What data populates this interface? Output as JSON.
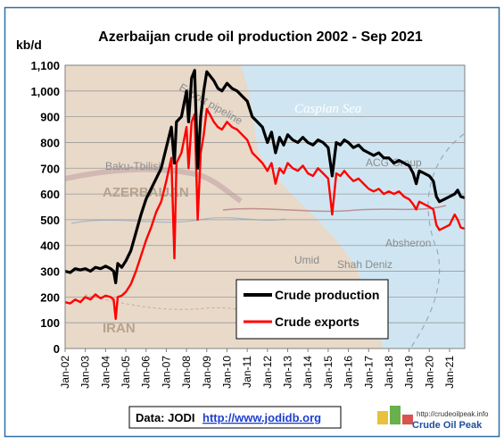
{
  "chart_data": {
    "type": "line",
    "title": "Azerbaijan crude oil production 2002 - Sep 2021",
    "ylabel": "kb/d",
    "ylim": [
      0,
      1100
    ],
    "yticks": [
      "0",
      "100",
      "200",
      "300",
      "400",
      "500",
      "600",
      "700",
      "800",
      "900",
      "1,000",
      "1,100"
    ],
    "xticks": [
      "Jan-02",
      "Jan-03",
      "Jan-04",
      "Jan-05",
      "Jan-06",
      "Jan-07",
      "Jan-08",
      "Jan-09",
      "Jan-10",
      "Jan-11",
      "Jan-12",
      "Jan-13",
      "Jan-14",
      "Jan-15",
      "Jan-16",
      "Jan-17",
      "Jan-18",
      "Jan-19",
      "Jan-20",
      "Jan-21"
    ],
    "xrange": [
      2002.0,
      2021.75
    ],
    "legend_position": "bottom-center",
    "series": [
      {
        "name": "Crude production",
        "color": "#000000",
        "points": [
          [
            2002.0,
            300
          ],
          [
            2002.25,
            295
          ],
          [
            2002.5,
            310
          ],
          [
            2002.75,
            305
          ],
          [
            2003.0,
            310
          ],
          [
            2003.25,
            300
          ],
          [
            2003.5,
            315
          ],
          [
            2003.75,
            310
          ],
          [
            2004.0,
            320
          ],
          [
            2004.25,
            310
          ],
          [
            2004.4,
            300
          ],
          [
            2004.5,
            255
          ],
          [
            2004.6,
            330
          ],
          [
            2004.8,
            315
          ],
          [
            2005.0,
            340
          ],
          [
            2005.25,
            380
          ],
          [
            2005.5,
            450
          ],
          [
            2005.75,
            520
          ],
          [
            2006.0,
            580
          ],
          [
            2006.25,
            620
          ],
          [
            2006.5,
            660
          ],
          [
            2006.75,
            700
          ],
          [
            2007.0,
            780
          ],
          [
            2007.25,
            860
          ],
          [
            2007.4,
            720
          ],
          [
            2007.5,
            880
          ],
          [
            2007.75,
            900
          ],
          [
            2008.0,
            1000
          ],
          [
            2008.1,
            880
          ],
          [
            2008.25,
            1050
          ],
          [
            2008.4,
            1080
          ],
          [
            2008.55,
            700
          ],
          [
            2008.7,
            900
          ],
          [
            2008.85,
            1000
          ],
          [
            2009.0,
            1075
          ],
          [
            2009.15,
            1060
          ],
          [
            2009.35,
            1040
          ],
          [
            2009.55,
            1010
          ],
          [
            2009.75,
            1000
          ],
          [
            2010.0,
            1030
          ],
          [
            2010.25,
            1010
          ],
          [
            2010.5,
            1000
          ],
          [
            2010.75,
            980
          ],
          [
            2011.0,
            960
          ],
          [
            2011.25,
            900
          ],
          [
            2011.5,
            880
          ],
          [
            2011.75,
            860
          ],
          [
            2012.0,
            800
          ],
          [
            2012.2,
            840
          ],
          [
            2012.4,
            760
          ],
          [
            2012.6,
            820
          ],
          [
            2012.8,
            790
          ],
          [
            2013.0,
            830
          ],
          [
            2013.25,
            810
          ],
          [
            2013.5,
            800
          ],
          [
            2013.75,
            820
          ],
          [
            2014.0,
            800
          ],
          [
            2014.25,
            790
          ],
          [
            2014.5,
            810
          ],
          [
            2014.75,
            800
          ],
          [
            2015.0,
            780
          ],
          [
            2015.2,
            670
          ],
          [
            2015.4,
            800
          ],
          [
            2015.6,
            790
          ],
          [
            2015.8,
            810
          ],
          [
            2016.0,
            800
          ],
          [
            2016.25,
            780
          ],
          [
            2016.5,
            790
          ],
          [
            2016.75,
            770
          ],
          [
            2017.0,
            760
          ],
          [
            2017.25,
            750
          ],
          [
            2017.5,
            760
          ],
          [
            2017.75,
            740
          ],
          [
            2018.0,
            740
          ],
          [
            2018.25,
            720
          ],
          [
            2018.5,
            730
          ],
          [
            2018.75,
            720
          ],
          [
            2019.0,
            710
          ],
          [
            2019.2,
            680
          ],
          [
            2019.35,
            640
          ],
          [
            2019.5,
            690
          ],
          [
            2019.75,
            680
          ],
          [
            2020.0,
            670
          ],
          [
            2020.2,
            650
          ],
          [
            2020.35,
            590
          ],
          [
            2020.5,
            570
          ],
          [
            2020.75,
            580
          ],
          [
            2021.0,
            590
          ],
          [
            2021.25,
            600
          ],
          [
            2021.4,
            615
          ],
          [
            2021.55,
            590
          ],
          [
            2021.75,
            585
          ]
        ]
      },
      {
        "name": "Crude exports",
        "color": "#ff0000",
        "points": [
          [
            2002.0,
            180
          ],
          [
            2002.25,
            175
          ],
          [
            2002.5,
            190
          ],
          [
            2002.75,
            180
          ],
          [
            2003.0,
            200
          ],
          [
            2003.25,
            190
          ],
          [
            2003.5,
            210
          ],
          [
            2003.75,
            195
          ],
          [
            2004.0,
            205
          ],
          [
            2004.25,
            200
          ],
          [
            2004.4,
            190
          ],
          [
            2004.5,
            115
          ],
          [
            2004.6,
            200
          ],
          [
            2004.8,
            205
          ],
          [
            2005.0,
            220
          ],
          [
            2005.25,
            250
          ],
          [
            2005.5,
            300
          ],
          [
            2005.75,
            360
          ],
          [
            2006.0,
            420
          ],
          [
            2006.25,
            470
          ],
          [
            2006.5,
            530
          ],
          [
            2006.75,
            570
          ],
          [
            2007.0,
            650
          ],
          [
            2007.25,
            740
          ],
          [
            2007.4,
            350
          ],
          [
            2007.5,
            720
          ],
          [
            2007.75,
            760
          ],
          [
            2008.0,
            860
          ],
          [
            2008.1,
            700
          ],
          [
            2008.25,
            880
          ],
          [
            2008.4,
            910
          ],
          [
            2008.55,
            500
          ],
          [
            2008.7,
            760
          ],
          [
            2008.85,
            830
          ],
          [
            2009.0,
            930
          ],
          [
            2009.15,
            910
          ],
          [
            2009.35,
            880
          ],
          [
            2009.55,
            860
          ],
          [
            2009.75,
            850
          ],
          [
            2010.0,
            880
          ],
          [
            2010.25,
            860
          ],
          [
            2010.5,
            850
          ],
          [
            2010.75,
            830
          ],
          [
            2011.0,
            810
          ],
          [
            2011.25,
            760
          ],
          [
            2011.5,
            740
          ],
          [
            2011.75,
            720
          ],
          [
            2012.0,
            690
          ],
          [
            2012.2,
            720
          ],
          [
            2012.4,
            640
          ],
          [
            2012.6,
            700
          ],
          [
            2012.8,
            680
          ],
          [
            2013.0,
            720
          ],
          [
            2013.25,
            700
          ],
          [
            2013.5,
            690
          ],
          [
            2013.75,
            710
          ],
          [
            2014.0,
            680
          ],
          [
            2014.25,
            670
          ],
          [
            2014.5,
            700
          ],
          [
            2014.75,
            680
          ],
          [
            2015.0,
            660
          ],
          [
            2015.2,
            520
          ],
          [
            2015.4,
            680
          ],
          [
            2015.6,
            670
          ],
          [
            2015.8,
            690
          ],
          [
            2016.0,
            670
          ],
          [
            2016.25,
            650
          ],
          [
            2016.5,
            660
          ],
          [
            2016.75,
            640
          ],
          [
            2017.0,
            620
          ],
          [
            2017.25,
            610
          ],
          [
            2017.5,
            620
          ],
          [
            2017.75,
            600
          ],
          [
            2018.0,
            610
          ],
          [
            2018.25,
            600
          ],
          [
            2018.5,
            610
          ],
          [
            2018.75,
            590
          ],
          [
            2019.0,
            580
          ],
          [
            2019.2,
            560
          ],
          [
            2019.35,
            540
          ],
          [
            2019.5,
            570
          ],
          [
            2019.75,
            560
          ],
          [
            2020.0,
            550
          ],
          [
            2020.2,
            540
          ],
          [
            2020.35,
            480
          ],
          [
            2020.5,
            460
          ],
          [
            2020.75,
            470
          ],
          [
            2021.0,
            480
          ],
          [
            2021.25,
            520
          ],
          [
            2021.4,
            500
          ],
          [
            2021.55,
            470
          ],
          [
            2021.75,
            465
          ]
        ]
      }
    ]
  },
  "map": {
    "labels": [
      "AZERBAIJAN",
      "IRAN",
      "Caspian Sea",
      "Baku-Tbilisi",
      "Export pipeline",
      "ACG Group",
      "Umid",
      "Shah Deniz",
      "Absheron"
    ]
  },
  "source": {
    "prefix": "Data: JODI",
    "link": "http://www.jodidb.org"
  },
  "logo": {
    "url": "http://crudeoilpeak.info",
    "name": "Crude Oil Peak"
  },
  "colors": {
    "land": "#e8d9c9",
    "sea": "#cfe6f2",
    "frame": "#2f6fa6"
  }
}
